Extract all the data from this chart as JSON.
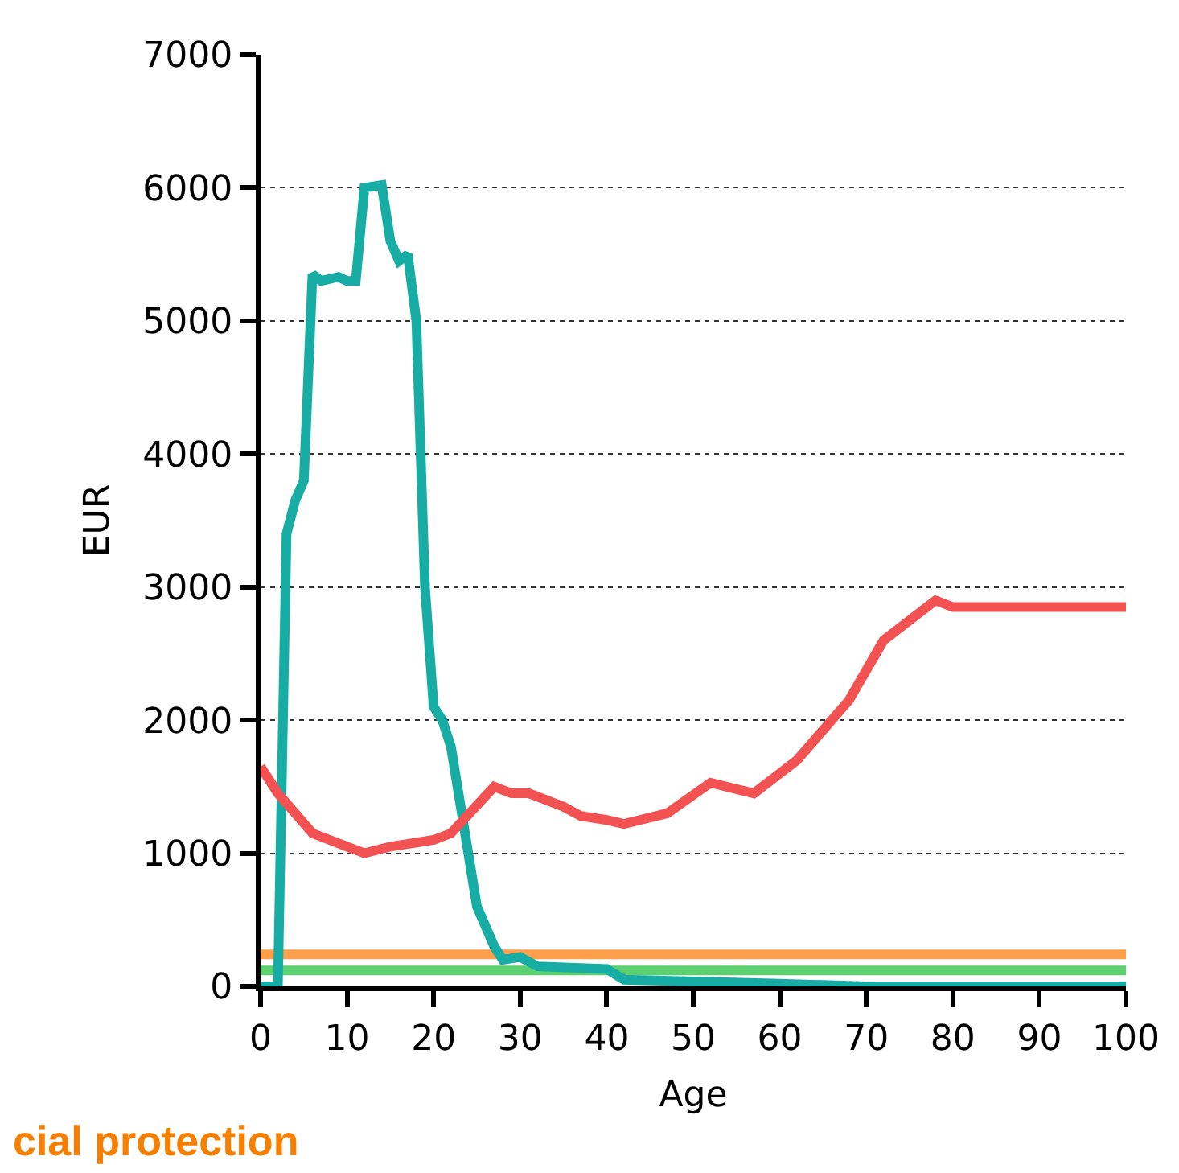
{
  "chart_data": {
    "type": "line",
    "xlabel": "Age",
    "ylabel": "EUR",
    "xlim": [
      0,
      100
    ],
    "xticks": [
      0,
      10,
      20,
      30,
      40,
      50,
      60,
      70,
      80,
      90,
      100
    ],
    "ylim": [
      0,
      7000
    ],
    "yticks": [
      0,
      1000,
      2000,
      3000,
      4000,
      5000,
      6000,
      7000
    ],
    "grid": "y",
    "line_style": "solid",
    "marker": "none",
    "annotations": [
      "cial protection"
    ],
    "series": [
      {
        "color": "#ff9f4a",
        "x": [
          0,
          100
        ],
        "values": [
          240,
          240
        ]
      },
      {
        "color": "#5ccf6f",
        "x": [
          0,
          100
        ],
        "values": [
          120,
          120
        ]
      },
      {
        "color": "#17ada5",
        "x": [
          0,
          2,
          3,
          4,
          5,
          6,
          7,
          9,
          10,
          11,
          12,
          14,
          15,
          16,
          17,
          18,
          19,
          20,
          21,
          22,
          24,
          25,
          27,
          28,
          30,
          32,
          40,
          42,
          60,
          70,
          100
        ],
        "values": [
          0,
          0,
          3400,
          3650,
          3800,
          5350,
          5300,
          5330,
          5300,
          5300,
          6000,
          6020,
          5600,
          5450,
          5500,
          5000,
          3000,
          2100,
          2000,
          1800,
          1000,
          600,
          300,
          200,
          220,
          150,
          130,
          50,
          20,
          0,
          0
        ]
      },
      {
        "color": "#f25252",
        "x": [
          0,
          2,
          4,
          6,
          10,
          12,
          15,
          20,
          22,
          27,
          29,
          31,
          35,
          37,
          40,
          42,
          47,
          52,
          57,
          62,
          66,
          68,
          72,
          76,
          78,
          80,
          100
        ],
        "values": [
          1650,
          1450,
          1300,
          1150,
          1050,
          1000,
          1050,
          1100,
          1150,
          1500,
          1450,
          1450,
          1350,
          1280,
          1250,
          1220,
          1300,
          1530,
          1450,
          1700,
          2000,
          2150,
          2600,
          2800,
          2900,
          2850,
          2850
        ]
      }
    ]
  }
}
